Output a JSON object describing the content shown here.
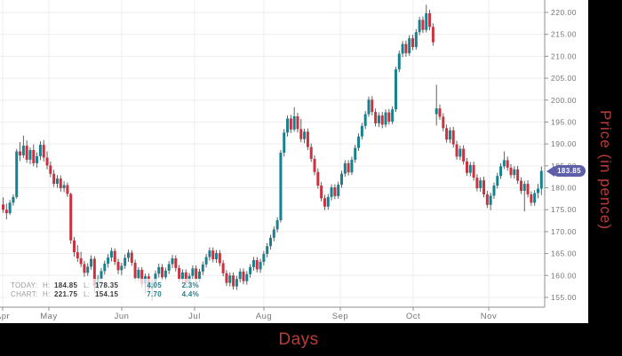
{
  "titles": {
    "x_axis_title": "Days",
    "y_axis_title": "Price (in pence)"
  },
  "colors": {
    "up": "#17818f",
    "down": "#cb3240",
    "wick": "#4f4f4f",
    "grid": "#ededed",
    "axis": "#8f8f8f",
    "tick_label": "#757575",
    "badge": "#5d5fa9",
    "axis_title_red": "#bb3b3b",
    "panel_black": "#000000"
  },
  "last_price_badge": {
    "value": "183.85"
  },
  "legend": {
    "rows": [
      {
        "label": "TODAY:",
        "high_label": "H:",
        "high": "184.85",
        "low_label": "L:",
        "low": "178.35",
        "change": "4.05",
        "change_pct": "2.3%"
      },
      {
        "label": "CHART:",
        "high_label": "H:",
        "high": "221.75",
        "low_label": "L:",
        "low": "154.15",
        "change": "7.70",
        "change_pct": "4.4%"
      }
    ]
  },
  "chart_data": {
    "type": "candlestick",
    "title": "",
    "xlabel": "Days",
    "ylabel": "Price (in pence)",
    "x_categories": [
      "Apr",
      "May",
      "Jun",
      "Jul",
      "Aug",
      "Sep",
      "Oct",
      "Nov"
    ],
    "month_tick_x": [
      3,
      55,
      137,
      219,
      297,
      383,
      465,
      550
    ],
    "y_axis": {
      "min": 155,
      "max": 220,
      "step": 5
    },
    "grid": true,
    "legend_position": "bottom-left-overlay",
    "candles_ohlc": [
      [
        176.2,
        177.8,
        174.3,
        175.0
      ],
      [
        175.0,
        176.4,
        172.8,
        174.2
      ],
      [
        174.2,
        177.2,
        173.8,
        176.6
      ],
      [
        176.6,
        178.5,
        175.9,
        177.9
      ],
      [
        177.9,
        188.9,
        177.5,
        188.3
      ],
      [
        188.3,
        190.4,
        186.1,
        187.4
      ],
      [
        187.4,
        191.9,
        186.8,
        189.6
      ],
      [
        189.6,
        190.8,
        185.7,
        186.4
      ],
      [
        186.4,
        189.2,
        185.4,
        188.6
      ],
      [
        188.6,
        189.9,
        184.9,
        185.6
      ],
      [
        185.6,
        188.1,
        184.6,
        187.2
      ],
      [
        187.2,
        190.6,
        186.3,
        189.8
      ],
      [
        189.8,
        190.9,
        186.0,
        186.9
      ],
      [
        186.9,
        188.3,
        184.2,
        185.1
      ],
      [
        185.1,
        186.0,
        182.4,
        183.2
      ],
      [
        183.2,
        184.1,
        180.2,
        180.9
      ],
      [
        180.9,
        182.9,
        180.0,
        182.1
      ],
      [
        182.1,
        182.8,
        179.1,
        179.9
      ],
      [
        179.9,
        181.5,
        179.0,
        180.6
      ],
      [
        180.6,
        181.2,
        177.9,
        178.6
      ],
      [
        178.6,
        178.9,
        167.2,
        168.0
      ],
      [
        168.0,
        168.8,
        164.3,
        165.3
      ],
      [
        165.3,
        166.9,
        163.1,
        163.9
      ],
      [
        163.9,
        165.4,
        161.9,
        162.6
      ],
      [
        162.6,
        163.3,
        159.7,
        160.6
      ],
      [
        160.6,
        162.8,
        159.9,
        162.0
      ],
      [
        162.0,
        164.6,
        161.3,
        163.8
      ],
      [
        163.8,
        164.4,
        156.3,
        157.6
      ],
      [
        157.6,
        160.1,
        155.2,
        159.3
      ],
      [
        159.3,
        161.7,
        158.4,
        161.0
      ],
      [
        161.0,
        163.4,
        160.2,
        162.7
      ],
      [
        162.7,
        164.9,
        161.8,
        164.1
      ],
      [
        164.1,
        166.3,
        163.2,
        165.6
      ],
      [
        165.6,
        166.2,
        162.4,
        163.1
      ],
      [
        163.1,
        163.8,
        160.3,
        161.2
      ],
      [
        161.2,
        162.9,
        160.1,
        162.2
      ],
      [
        162.2,
        164.8,
        161.5,
        164.0
      ],
      [
        164.0,
        165.9,
        163.1,
        165.2
      ],
      [
        165.2,
        165.8,
        162.2,
        162.9
      ],
      [
        162.9,
        163.6,
        158.7,
        159.4
      ],
      [
        159.4,
        161.9,
        158.6,
        161.3
      ],
      [
        161.3,
        161.9,
        157.3,
        158.1
      ],
      [
        158.1,
        160.4,
        155.9,
        159.8
      ],
      [
        159.8,
        160.5,
        156.1,
        156.9
      ],
      [
        156.9,
        159.2,
        154.15,
        158.4
      ],
      [
        158.4,
        161.1,
        157.6,
        160.4
      ],
      [
        160.4,
        162.7,
        159.5,
        161.9
      ],
      [
        161.9,
        162.6,
        158.9,
        159.6
      ],
      [
        159.6,
        161.8,
        158.8,
        161.1
      ],
      [
        161.1,
        163.3,
        160.3,
        162.6
      ],
      [
        162.6,
        164.7,
        161.7,
        163.9
      ],
      [
        163.9,
        164.6,
        160.9,
        161.7
      ],
      [
        161.7,
        162.4,
        158.4,
        159.1
      ],
      [
        159.1,
        161.4,
        158.3,
        160.7
      ],
      [
        160.7,
        161.4,
        157.5,
        158.2
      ],
      [
        158.2,
        160.6,
        157.4,
        159.9
      ],
      [
        159.9,
        162.3,
        159.1,
        161.6
      ],
      [
        161.6,
        162.3,
        158.5,
        159.2
      ],
      [
        159.2,
        161.5,
        158.4,
        160.9
      ],
      [
        160.9,
        163.2,
        160.1,
        162.5
      ],
      [
        162.5,
        164.9,
        161.8,
        164.2
      ],
      [
        164.2,
        166.4,
        163.4,
        165.7
      ],
      [
        165.7,
        166.4,
        163.0,
        163.7
      ],
      [
        163.7,
        165.8,
        162.9,
        165.1
      ],
      [
        165.1,
        165.8,
        162.1,
        162.8
      ],
      [
        162.8,
        163.5,
        159.8,
        160.5
      ],
      [
        160.5,
        161.2,
        157.6,
        158.3
      ],
      [
        158.3,
        160.7,
        157.5,
        160.0
      ],
      [
        160.0,
        160.7,
        156.8,
        157.5
      ],
      [
        157.5,
        159.9,
        156.7,
        159.2
      ],
      [
        159.2,
        161.6,
        158.4,
        160.9
      ],
      [
        160.9,
        161.6,
        158.0,
        158.7
      ],
      [
        158.7,
        161.0,
        157.9,
        160.3
      ],
      [
        160.3,
        162.6,
        159.5,
        161.9
      ],
      [
        161.9,
        164.2,
        161.1,
        163.5
      ],
      [
        163.5,
        164.2,
        160.7,
        161.4
      ],
      [
        161.4,
        163.8,
        160.6,
        163.1
      ],
      [
        163.1,
        165.6,
        162.3,
        164.9
      ],
      [
        164.9,
        167.4,
        164.1,
        166.7
      ],
      [
        166.7,
        169.3,
        165.9,
        168.6
      ],
      [
        168.6,
        171.2,
        167.8,
        170.5
      ],
      [
        170.5,
        173.3,
        169.8,
        172.6
      ],
      [
        172.6,
        188.6,
        172.1,
        188.0
      ],
      [
        188.0,
        193.4,
        187.1,
        192.6
      ],
      [
        192.6,
        196.5,
        191.7,
        195.8
      ],
      [
        195.8,
        196.6,
        192.5,
        193.3
      ],
      [
        193.3,
        198.4,
        192.8,
        196.3
      ],
      [
        196.3,
        197.1,
        192.6,
        193.4
      ],
      [
        193.4,
        195.7,
        190.4,
        191.1
      ],
      [
        191.1,
        193.5,
        190.2,
        192.8
      ],
      [
        192.8,
        193.5,
        188.6,
        189.3
      ],
      [
        189.3,
        190.1,
        185.9,
        186.6
      ],
      [
        186.6,
        187.4,
        182.9,
        183.6
      ],
      [
        183.6,
        184.4,
        179.8,
        180.5
      ],
      [
        180.5,
        181.3,
        176.9,
        177.6
      ],
      [
        177.6,
        178.4,
        174.9,
        175.7
      ],
      [
        175.7,
        178.6,
        175.0,
        177.9
      ],
      [
        177.9,
        180.8,
        177.1,
        180.1
      ],
      [
        180.1,
        180.8,
        177.4,
        178.1
      ],
      [
        178.1,
        181.4,
        177.5,
        180.7
      ],
      [
        180.7,
        183.9,
        180.0,
        183.2
      ],
      [
        183.2,
        186.3,
        182.5,
        185.6
      ],
      [
        185.6,
        186.3,
        182.8,
        183.5
      ],
      [
        183.5,
        187.1,
        182.9,
        186.4
      ],
      [
        186.4,
        189.8,
        185.7,
        189.1
      ],
      [
        189.1,
        192.4,
        188.4,
        191.7
      ],
      [
        191.7,
        194.8,
        191.0,
        194.1
      ],
      [
        194.1,
        197.5,
        193.4,
        196.8
      ],
      [
        196.8,
        200.8,
        196.2,
        200.1
      ],
      [
        200.1,
        200.9,
        196.5,
        197.3
      ],
      [
        197.3,
        198.1,
        194.0,
        194.7
      ],
      [
        194.7,
        197.2,
        193.9,
        196.5
      ],
      [
        196.5,
        197.3,
        193.6,
        194.4
      ],
      [
        194.4,
        197.9,
        193.8,
        197.2
      ],
      [
        197.2,
        198.0,
        194.4,
        195.1
      ],
      [
        195.1,
        198.6,
        194.5,
        197.9
      ],
      [
        197.9,
        207.6,
        197.3,
        207.0
      ],
      [
        207.0,
        211.3,
        206.4,
        210.6
      ],
      [
        210.6,
        213.5,
        209.8,
        212.8
      ],
      [
        212.8,
        213.6,
        209.9,
        210.7
      ],
      [
        210.7,
        214.8,
        210.1,
        214.1
      ],
      [
        214.1,
        214.9,
        211.4,
        212.1
      ],
      [
        212.1,
        216.2,
        211.5,
        215.5
      ],
      [
        215.5,
        219.0,
        214.8,
        218.3
      ],
      [
        218.3,
        219.1,
        215.3,
        216.0
      ],
      [
        216.0,
        221.75,
        215.4,
        219.8
      ],
      [
        219.8,
        220.6,
        215.9,
        216.7
      ],
      [
        216.7,
        217.5,
        212.4,
        213.2
      ],
      [
        196.8,
        203.5,
        194.2,
        198.1
      ],
      [
        198.1,
        199.0,
        195.5,
        196.2
      ],
      [
        196.2,
        197.0,
        192.9,
        193.6
      ],
      [
        193.6,
        194.4,
        190.3,
        191.0
      ],
      [
        191.0,
        193.8,
        190.2,
        193.1
      ],
      [
        193.1,
        193.9,
        189.2,
        189.9
      ],
      [
        189.9,
        190.7,
        186.4,
        187.1
      ],
      [
        187.1,
        189.6,
        186.3,
        188.9
      ],
      [
        188.9,
        189.7,
        185.3,
        186.0
      ],
      [
        186.0,
        186.8,
        182.7,
        183.4
      ],
      [
        183.4,
        185.9,
        182.6,
        185.2
      ],
      [
        185.2,
        186.0,
        181.6,
        182.3
      ],
      [
        182.3,
        183.1,
        179.2,
        179.9
      ],
      [
        179.9,
        182.4,
        179.1,
        181.7
      ],
      [
        181.7,
        182.5,
        177.8,
        178.5
      ],
      [
        178.5,
        179.3,
        175.4,
        176.1
      ],
      [
        176.1,
        178.9,
        174.9,
        178.2
      ],
      [
        178.2,
        181.2,
        177.5,
        180.5
      ],
      [
        180.5,
        183.4,
        179.8,
        182.7
      ],
      [
        182.7,
        185.6,
        182.0,
        184.9
      ],
      [
        184.9,
        188.3,
        184.3,
        186.3
      ],
      [
        186.3,
        187.1,
        183.9,
        184.6
      ],
      [
        184.6,
        185.4,
        182.2,
        182.9
      ],
      [
        182.9,
        184.9,
        182.1,
        184.2
      ],
      [
        184.2,
        185.0,
        180.9,
        181.6
      ],
      [
        181.6,
        182.4,
        178.6,
        179.3
      ],
      [
        179.3,
        181.6,
        174.6,
        180.9
      ],
      [
        180.9,
        181.7,
        177.8,
        178.5
      ],
      [
        178.5,
        179.2,
        175.9,
        176.6
      ],
      [
        176.6,
        179.5,
        175.9,
        178.8
      ],
      [
        178.8,
        180.9,
        177.6,
        179.8
      ],
      [
        179.8,
        184.85,
        178.35,
        183.85
      ]
    ]
  }
}
